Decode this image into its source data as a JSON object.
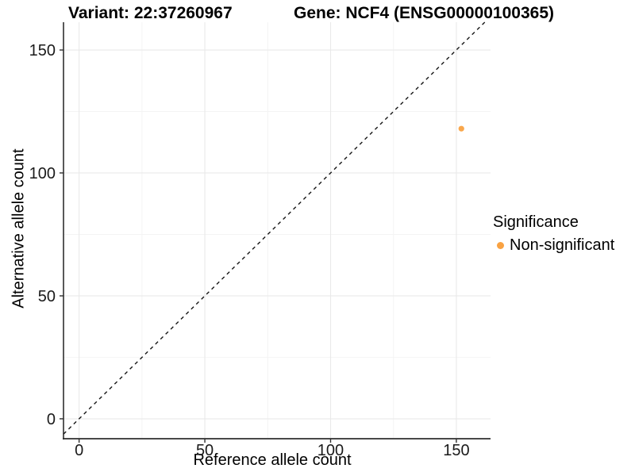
{
  "header": {
    "title_left": "Variant: 22:37260967",
    "title_right": "Gene: NCF4 (ENSG00000100365)"
  },
  "chart_data": {
    "type": "scatter",
    "title_left": "Variant: 22:37260967",
    "title_right": "Gene: NCF4 (ENSG00000100365)",
    "xlabel": "Reference allele count",
    "ylabel": "Alternative allele count",
    "xlim": [
      -6.2,
      163.6
    ],
    "ylim": [
      -8.1,
      161.3
    ],
    "x_ticks": [
      0,
      50,
      100,
      150
    ],
    "y_ticks": [
      0,
      50,
      100,
      150
    ],
    "x_minor_ticks": [
      25,
      75,
      125
    ],
    "y_minor_ticks": [
      25,
      75,
      125
    ],
    "grid": "on",
    "legend_position": "right",
    "reference_line": {
      "kind": "identity",
      "equation": "y = x",
      "style": "dashed",
      "color": "#161616"
    },
    "series": [
      {
        "name": "Non-significant",
        "color": "#F9A242",
        "points": [
          {
            "x": 152,
            "y": 118
          }
        ]
      }
    ],
    "legend": {
      "title": "Significance",
      "items": [
        {
          "label": "Non-significant",
          "color": "#F9A242"
        }
      ]
    },
    "colors": {
      "axis_line": "#2f2f2f",
      "grid_major": "#e9e9e9",
      "grid_minor": "#f4f4f4",
      "tick_text": "#1a1a1a",
      "point": "#F9A242"
    }
  }
}
